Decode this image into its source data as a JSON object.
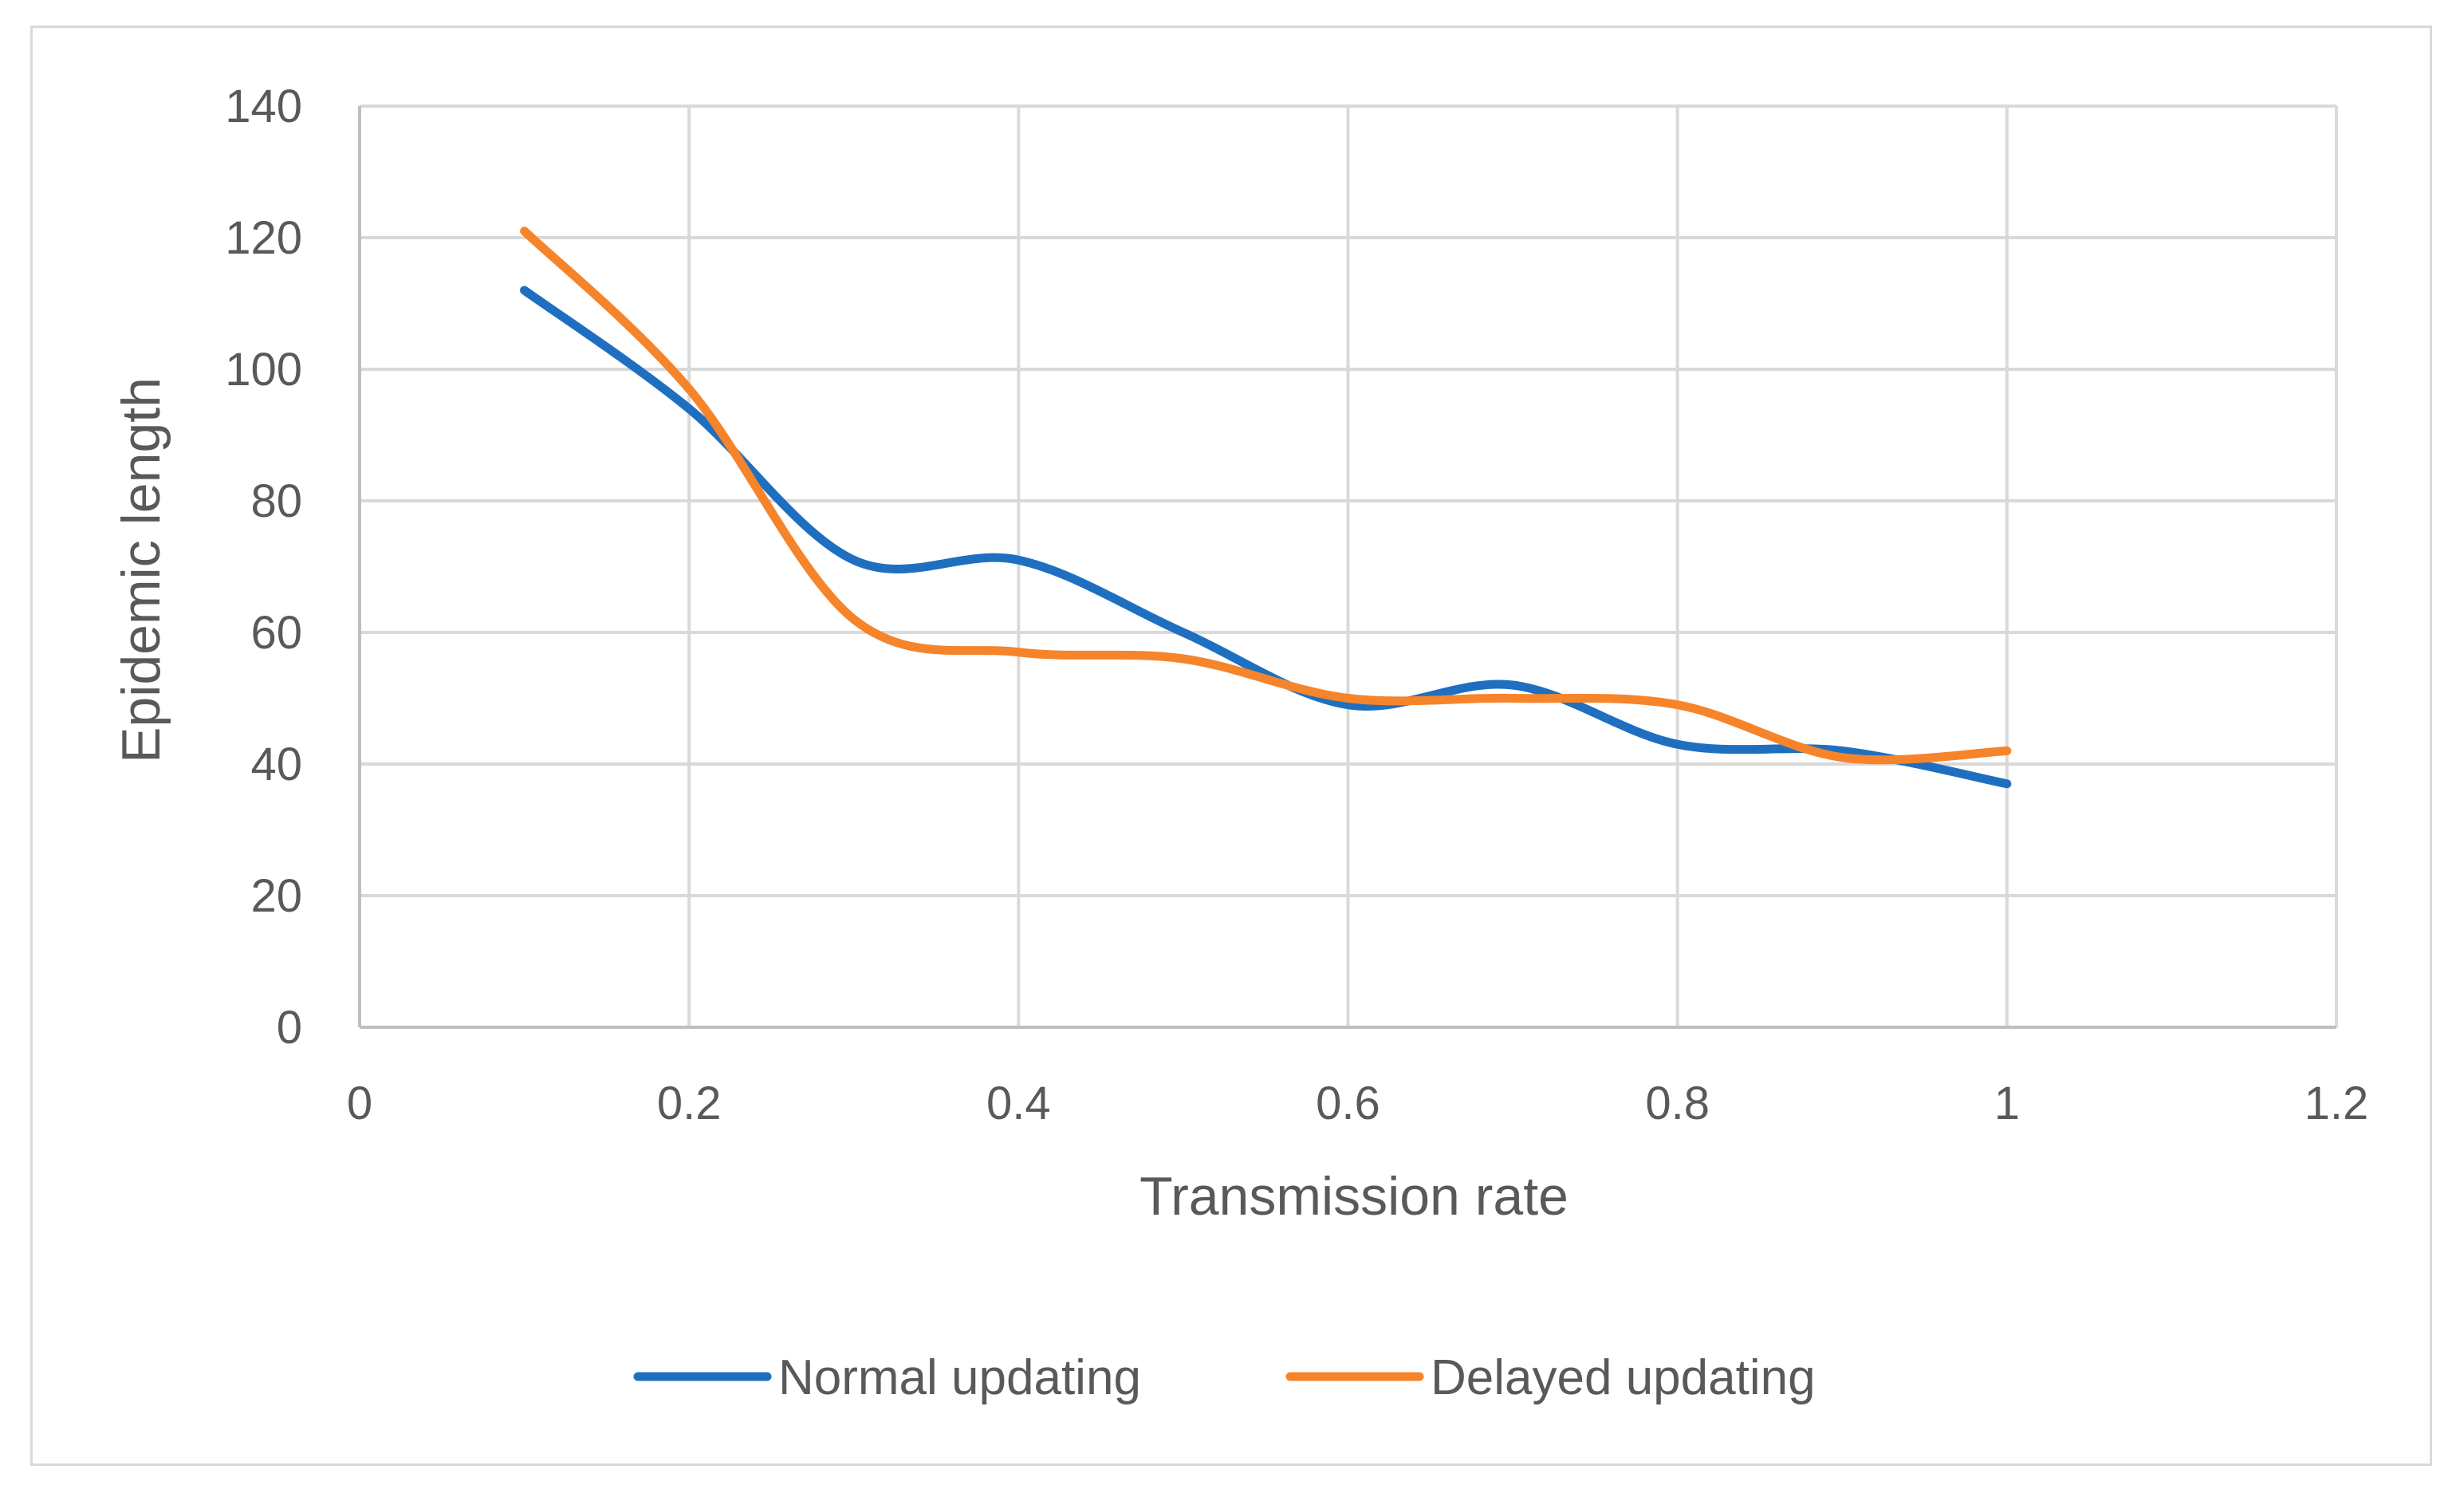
{
  "chart_data": {
    "type": "line",
    "title": "",
    "xlabel": "Transmission rate",
    "ylabel": "Epidemic length",
    "xlim": [
      0,
      1.2
    ],
    "ylim": [
      0,
      140
    ],
    "x_ticks": [
      0,
      0.2,
      0.4,
      0.6,
      0.8,
      1,
      1.2
    ],
    "x_tick_labels": [
      "0",
      "0.2",
      "0.4",
      "0.6",
      "0.8",
      "1",
      "1.2"
    ],
    "y_ticks": [
      0,
      20,
      40,
      60,
      80,
      100,
      120,
      140
    ],
    "y_tick_labels": [
      "0",
      "20",
      "40",
      "60",
      "80",
      "100",
      "120",
      "140"
    ],
    "grid": true,
    "smooth": true,
    "legend_position": "bottom",
    "x": [
      0.1,
      0.2,
      0.3,
      0.4,
      0.5,
      0.6,
      0.7,
      0.8,
      0.9,
      1.0
    ],
    "series": [
      {
        "name": "Normal updating",
        "color": "#1f6fc1",
        "values": [
          112,
          94,
          71,
          71,
          60,
          49,
          52,
          43,
          42,
          37
        ]
      },
      {
        "name": "Delayed updating",
        "color": "#f5842b",
        "values": [
          121,
          97,
          62,
          57,
          56,
          50,
          50,
          49,
          41,
          42
        ]
      }
    ]
  }
}
